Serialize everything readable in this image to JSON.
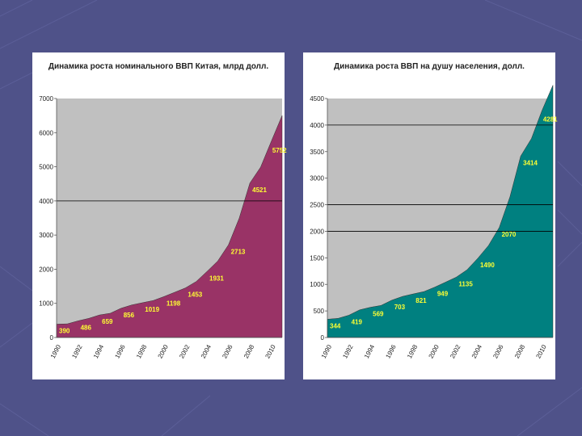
{
  "colors": {
    "background": "#4f5289",
    "plot_area": "#c0c0c0",
    "left_fill": "#993366",
    "right_fill": "#008080",
    "label": "#ffff33"
  },
  "chart_data": [
    {
      "type": "area",
      "title": "Динамика роста номинального ВВП Китая, млрд долл.",
      "x": [
        1990,
        1991,
        1992,
        1993,
        1994,
        1995,
        1996,
        1997,
        1998,
        1999,
        2000,
        2001,
        2002,
        2003,
        2004,
        2005,
        2006,
        2007,
        2008,
        2009,
        2010,
        2011
      ],
      "y": [
        390,
        400,
        486,
        560,
        659,
        710,
        856,
        952,
        1019,
        1083,
        1198,
        1325,
        1453,
        1640,
        1931,
        2236,
        2713,
        3494,
        4521,
        4991,
        5752,
        6500
      ],
      "x_ticks": [
        "1990",
        "1992",
        "1994",
        "1996",
        "1998",
        "2000",
        "2002",
        "2004",
        "2006",
        "2008",
        "2010"
      ],
      "y_ticks": [
        "0",
        "1000",
        "2000",
        "3000",
        "4000",
        "5000",
        "6000",
        "7000"
      ],
      "ylim": [
        0,
        7000
      ],
      "gridlines": [
        4000
      ],
      "labels": [
        {
          "x": 1990,
          "y": 390,
          "text": "390"
        },
        {
          "x": 1992,
          "y": 486,
          "text": "486"
        },
        {
          "x": 1994,
          "y": 659,
          "text": "659"
        },
        {
          "x": 1996,
          "y": 856,
          "text": "856"
        },
        {
          "x": 1998,
          "y": 1019,
          "text": "1019"
        },
        {
          "x": 2000,
          "y": 1198,
          "text": "1198"
        },
        {
          "x": 2002,
          "y": 1453,
          "text": "1453"
        },
        {
          "x": 2004,
          "y": 1931,
          "text": "1931"
        },
        {
          "x": 2006,
          "y": 2713,
          "text": "2713"
        },
        {
          "x": 2008,
          "y": 4521,
          "text": "4521"
        },
        {
          "x": 2010,
          "y": 5752,
          "text": "5752"
        }
      ]
    },
    {
      "type": "area",
      "title": "Динамика роста ВВП на душу населения, долл.",
      "x": [
        1990,
        1991,
        1992,
        1993,
        1994,
        1995,
        1996,
        1997,
        1998,
        1999,
        2000,
        2001,
        2002,
        2003,
        2004,
        2005,
        2006,
        2007,
        2008,
        2009,
        2010,
        2011
      ],
      "y": [
        344,
        360,
        419,
        520,
        569,
        604,
        703,
        774,
        821,
        865,
        949,
        1042,
        1135,
        1274,
        1490,
        1731,
        2070,
        2651,
        3414,
        3744,
        4281,
        4750
      ],
      "x_ticks": [
        "1990",
        "1992",
        "1994",
        "1996",
        "1998",
        "2000",
        "2002",
        "2004",
        "2006",
        "2008",
        "2010"
      ],
      "y_ticks": [
        "0",
        "500",
        "1000",
        "1500",
        "2000",
        "2500",
        "3000",
        "3500",
        "4000",
        "4500"
      ],
      "ylim": [
        0,
        4500
      ],
      "gridlines": [
        2000,
        2500,
        4000
      ],
      "labels": [
        {
          "x": 1990,
          "y": 344,
          "text": "344"
        },
        {
          "x": 1992,
          "y": 419,
          "text": "419"
        },
        {
          "x": 1994,
          "y": 569,
          "text": "569"
        },
        {
          "x": 1996,
          "y": 703,
          "text": "703"
        },
        {
          "x": 1998,
          "y": 821,
          "text": "821"
        },
        {
          "x": 2000,
          "y": 949,
          "text": "949"
        },
        {
          "x": 2002,
          "y": 1135,
          "text": "1135"
        },
        {
          "x": 2004,
          "y": 1490,
          "text": "1490"
        },
        {
          "x": 2006,
          "y": 2070,
          "text": "2070"
        },
        {
          "x": 2008,
          "y": 3414,
          "text": "3414"
        },
        {
          "x": 2010,
          "y": 4281,
          "text": "4281"
        }
      ]
    }
  ]
}
